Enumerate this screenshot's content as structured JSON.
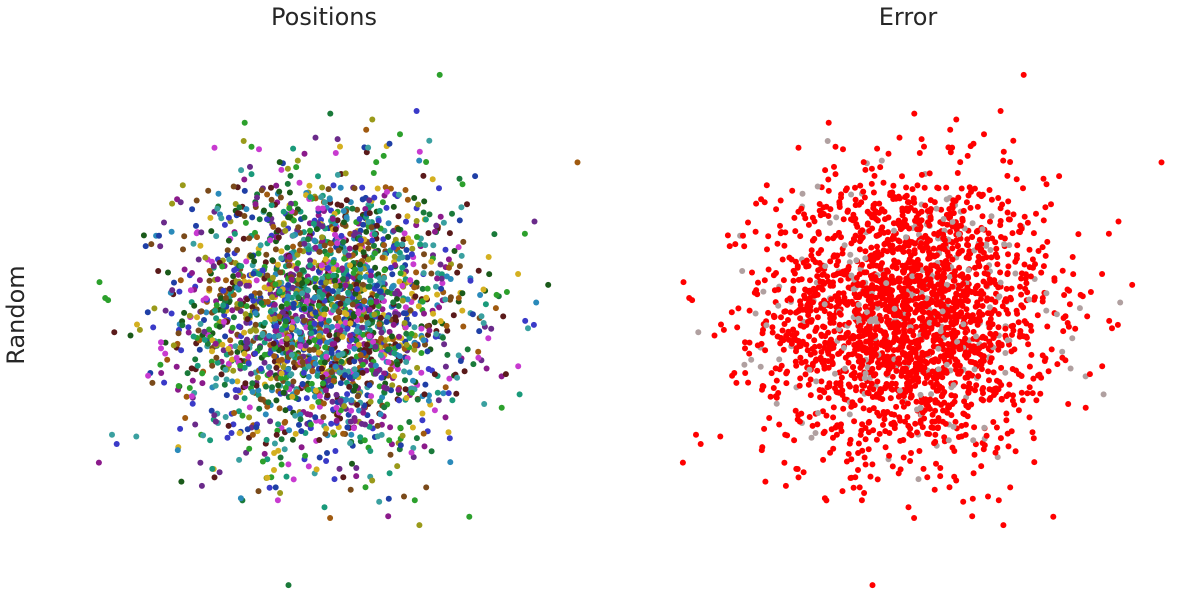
{
  "figure": {
    "row_label": "Random"
  },
  "chart_data": [
    {
      "type": "scatter",
      "title": "Positions",
      "xlabel": "",
      "ylabel": "",
      "grid": false,
      "axes_visible": false,
      "xlim": [
        -4,
        4
      ],
      "ylim": [
        -4,
        4
      ],
      "distribution": "2D standard normal cloud centered at (0, 0)",
      "point_count_estimate": 2500,
      "coloring": "each point a different random color",
      "palette": [
        "#2ca02c",
        "#1f3fa6",
        "#8b1a8b",
        "#1a9a7a",
        "#9a9a1a",
        "#5a1a1a",
        "#2a8aba",
        "#7a4a1a",
        "#1a5a1a",
        "#c83ad0",
        "#d4b020",
        "#3aa0a0",
        "#6a2a8a",
        "#1a7a3a",
        "#3a3ac8",
        "#a05a10"
      ],
      "annotations": [],
      "label_series": "Random"
    },
    {
      "type": "scatter",
      "title": "Error",
      "xlabel": "",
      "ylabel": "",
      "grid": false,
      "axes_visible": false,
      "xlim": [
        -4,
        4
      ],
      "ylim": [
        -4,
        4
      ],
      "distribution": "2D standard normal cloud centered at (0, 0)",
      "point_count_estimate": 2500,
      "coloring": "red = error, gray = correct",
      "colors": {
        "error": "#ff0000",
        "correct": "#b0a0a0"
      },
      "error_fraction_estimate": 0.9,
      "annotations": []
    }
  ]
}
